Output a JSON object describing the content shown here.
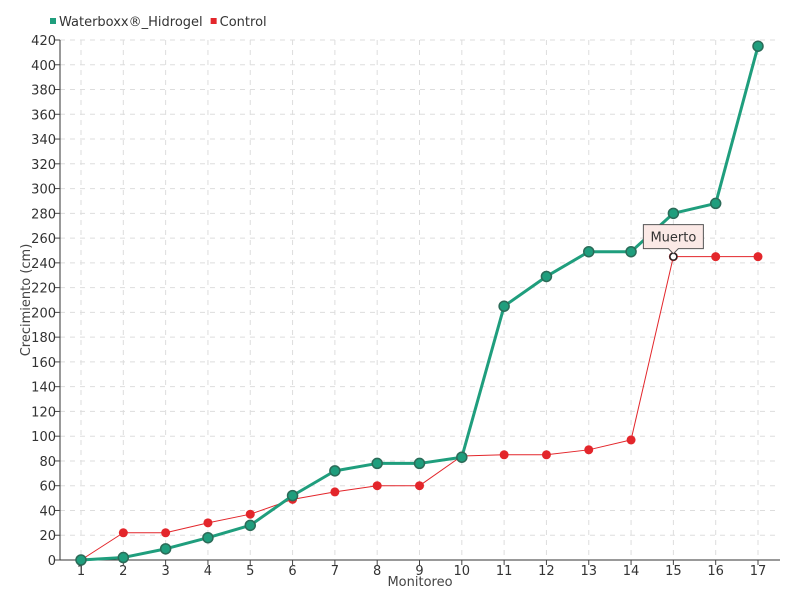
{
  "chart_data": {
    "type": "line",
    "xlabel": "Monitoreo",
    "ylabel": "Crecimiento (cm)",
    "ylim": [
      0,
      420
    ],
    "ytick_step": 20,
    "grid": true,
    "legend_position": "top-left",
    "categories": [
      "1",
      "2",
      "3",
      "4",
      "5",
      "6",
      "7",
      "8",
      "9",
      "10",
      "11",
      "12",
      "13",
      "14",
      "15",
      "16",
      "17"
    ],
    "series": [
      {
        "name": "Waterboxx®_Hidrogel",
        "color": "#1f9e7d",
        "values": [
          0,
          2,
          9,
          18,
          28,
          52,
          72,
          78,
          78,
          83,
          205,
          229,
          249,
          249,
          280,
          288,
          415
        ]
      },
      {
        "name": "Control",
        "color": "#e3262b",
        "values": [
          0,
          22,
          22,
          30,
          37,
          49,
          55,
          60,
          60,
          84,
          85,
          85,
          89,
          97,
          245,
          245,
          245
        ]
      }
    ],
    "annotations": [
      {
        "text": "Muerto",
        "series": 1,
        "index": 14
      }
    ]
  }
}
